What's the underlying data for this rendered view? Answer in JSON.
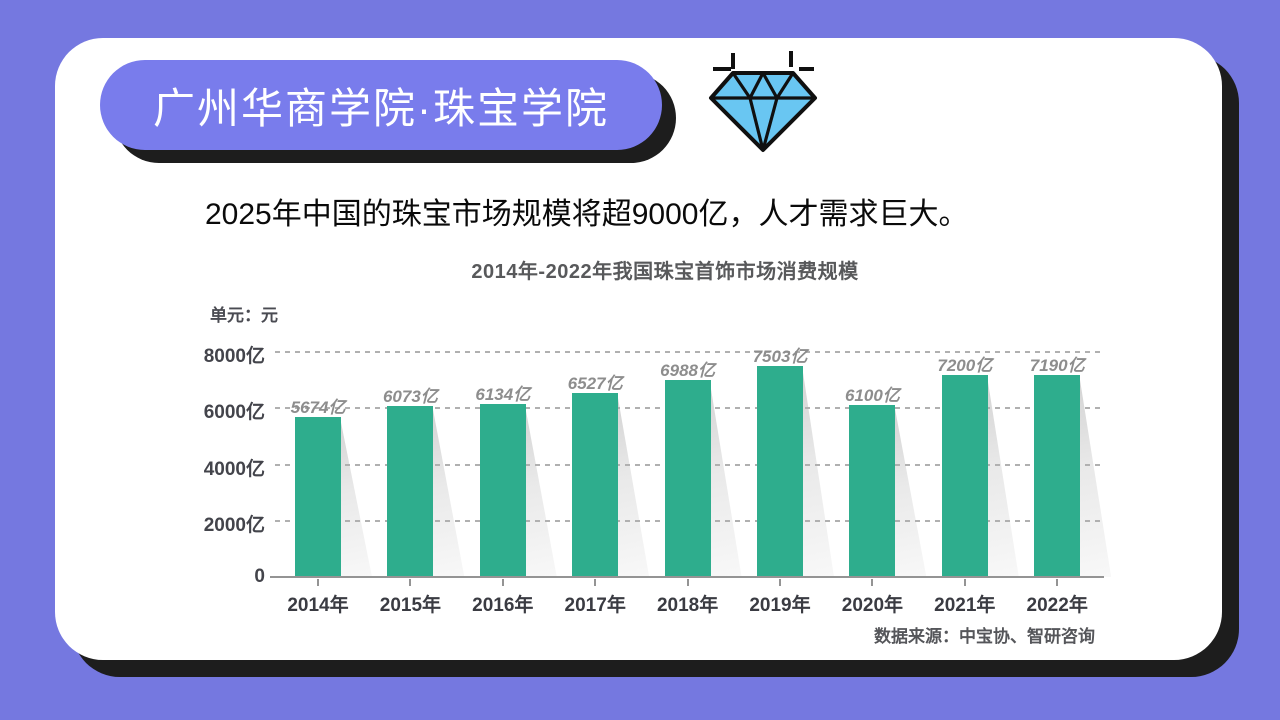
{
  "header": {
    "title": "广州华商学院·珠宝学院"
  },
  "headline": "2025年中国的珠宝市场规模将超9000亿，人才需求巨大。",
  "chart_data": {
    "type": "bar",
    "title": "2014年-2022年我国珠宝首饰市场消费规模",
    "unit_label": "单元：元",
    "categories": [
      "2014年",
      "2015年",
      "2016年",
      "2017年",
      "2018年",
      "2019年",
      "2020年",
      "2021年",
      "2022年"
    ],
    "values": [
      5674,
      6073,
      6134,
      6527,
      6988,
      7503,
      6100,
      7200,
      7190
    ],
    "value_labels": [
      "5674亿",
      "6073亿",
      "6134亿",
      "6527亿",
      "6988亿",
      "7503亿",
      "6100亿",
      "7200亿",
      "7190亿"
    ],
    "yticks": [
      {
        "label": "8000亿",
        "value": 8000
      },
      {
        "label": "6000亿",
        "value": 6000
      },
      {
        "label": "4000亿",
        "value": 4000
      },
      {
        "label": "2000亿",
        "value": 2000
      },
      {
        "label": "0",
        "value": 0
      }
    ],
    "ylim": [
      0,
      8000
    ],
    "grid": "horizontal-dashed",
    "legend": "none",
    "bar_color": "#2EAD8D",
    "source": "数据来源：中宝协、智研咨询"
  },
  "colors": {
    "slide_bg": "#7578E0",
    "banner_bg": "#797CEC",
    "shadow": "#1D1D1D",
    "bar": "#2EAD8D",
    "diamond_fill": "#69C6F2",
    "diamond_outline": "#101010"
  }
}
